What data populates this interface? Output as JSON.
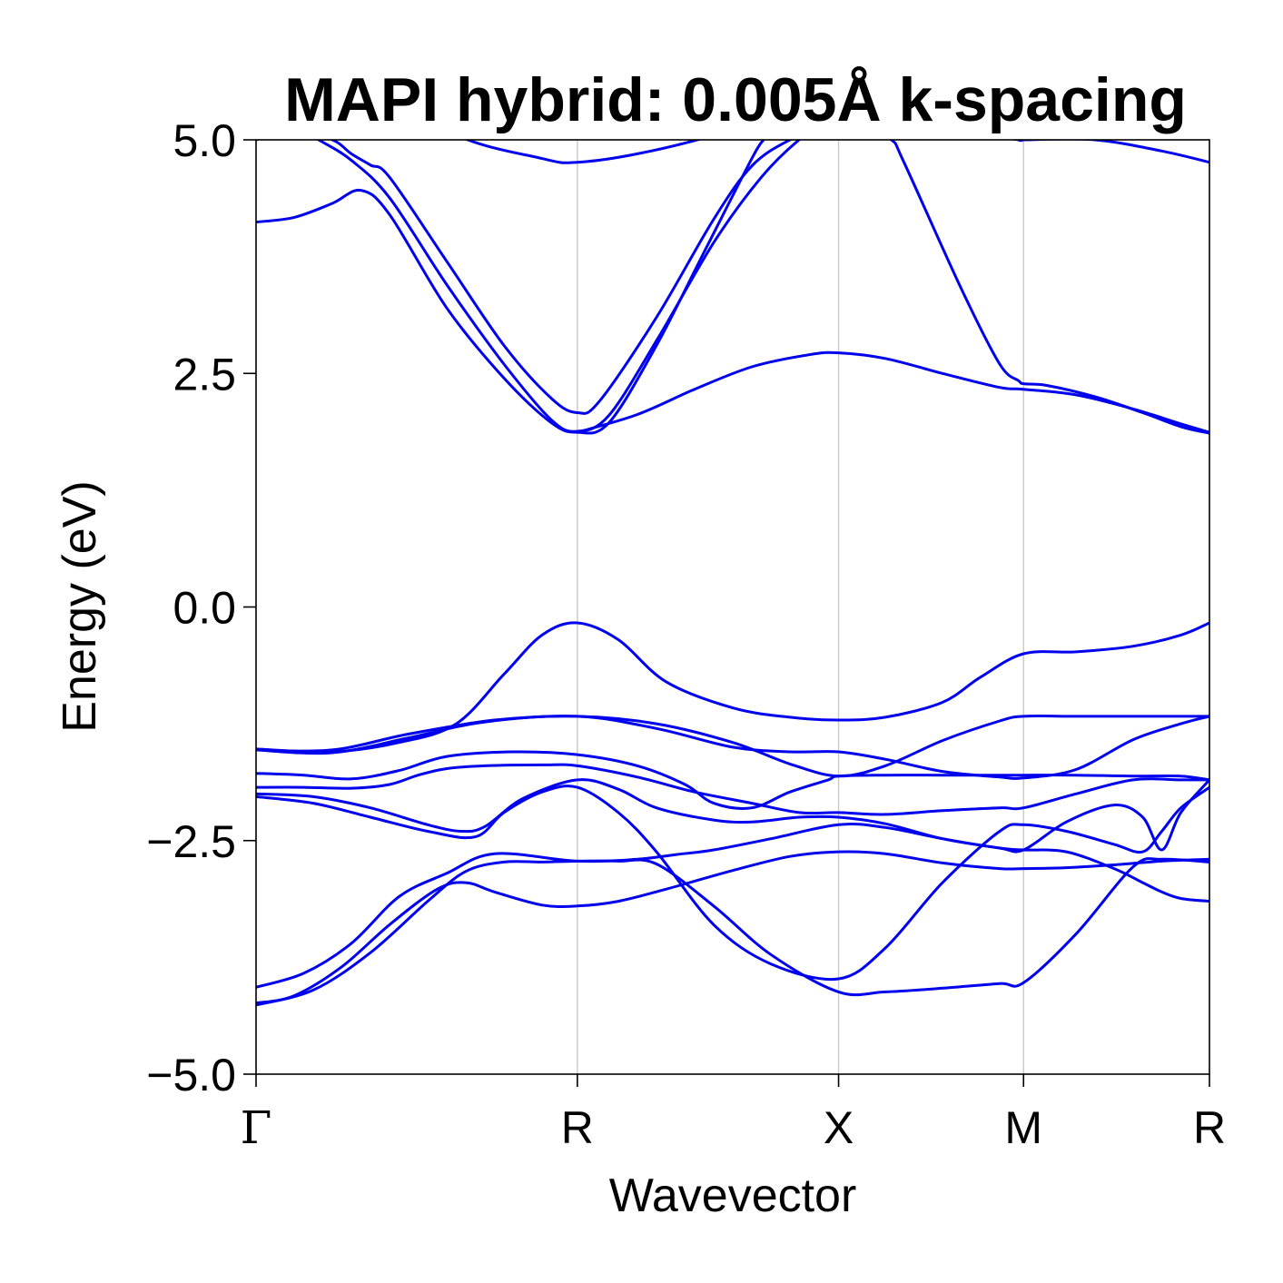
{
  "chart_data": {
    "type": "line",
    "title": "MAPI hybrid: 0.005Å k-spacing",
    "xlabel": "Wavevector",
    "ylabel": "Energy (eV)",
    "ylim": [
      -5.0,
      5.0
    ],
    "xlim": [
      0,
      1
    ],
    "yticks": [
      5.0,
      2.5,
      0.0,
      -2.5,
      -5.0
    ],
    "ytick_labels": [
      "5.0",
      "2.5",
      "0.0",
      "−2.5",
      "−5.0"
    ],
    "kpoints": [
      {
        "label": "Γ",
        "x": 0.0
      },
      {
        "label": "R",
        "x": 0.337
      },
      {
        "label": "X",
        "x": 0.611
      },
      {
        "label": "M",
        "x": 0.805
      },
      {
        "label": "R",
        "x": 1.0
      }
    ],
    "grid": "vertical lines at k-points",
    "color": "#0000ee",
    "series": [
      {
        "x": [
          0.0,
          0.04,
          0.08,
          0.11,
          0.14,
          0.2,
          0.26,
          0.31,
          0.337,
          0.37,
          0.42,
          0.47,
          0.52,
          0.5323
        ],
        "y": [
          4.12,
          4.17,
          4.32,
          4.46,
          4.2,
          3.2,
          2.45,
          1.97,
          1.87,
          1.97,
          2.8,
          3.8,
          4.8,
          5.0
        ]
      },
      {
        "x": [
          0.0,
          0.04,
          0.08,
          0.1,
          0.12,
          0.14,
          0.2,
          0.26,
          0.31,
          0.337,
          0.36,
          0.42,
          0.48,
          0.52,
          0.56,
          0.6,
          0.611,
          0.64,
          0.6664,
          0.68,
          0.74,
          0.78,
          0.8,
          0.805,
          0.83,
          0.88,
          0.93,
          0.97,
          1.0
        ],
        "y": [
          5.0,
          5.1,
          5.0,
          4.85,
          4.73,
          4.6,
          3.7,
          2.8,
          2.23,
          2.08,
          2.2,
          3.1,
          4.15,
          4.72,
          5.0,
          5.15,
          5.15,
          5.1,
          5.0,
          4.75,
          3.4,
          2.6,
          2.42,
          2.39,
          2.37,
          2.25,
          2.08,
          1.93,
          1.86
        ]
      },
      {
        "x": [
          0.0,
          0.03,
          0.0657,
          0.1,
          0.14,
          0.2,
          0.26,
          0.31,
          0.337,
          0.37,
          0.42,
          0.48,
          0.53,
          0.5695,
          0.6,
          0.611
        ],
        "y": [
          5.05,
          5.2,
          5.0,
          4.78,
          4.38,
          3.45,
          2.6,
          2.0,
          1.88,
          2.05,
          2.85,
          3.9,
          4.6,
          5.0,
          5.2,
          5.25
        ]
      },
      {
        "x": [
          0.0,
          0.1,
          0.2,
          0.3,
          0.337,
          0.4,
          0.48,
          0.55,
          0.611,
          0.67,
          0.74,
          0.8,
          0.805,
          0.88,
          0.95,
          1.0
        ],
        "y": [
          5.0,
          5.9,
          5.1,
          4.8,
          4.76,
          4.85,
          5.05,
          5.3,
          5.4,
          5.3,
          5.1,
          5.0,
          5.0,
          5.0,
          4.88,
          4.76
        ]
      },
      {
        "x": [
          0.337,
          0.4,
          0.46,
          0.52,
          0.58,
          0.611,
          0.66,
          0.72,
          0.78,
          0.805,
          0.86,
          0.92,
          0.97,
          1.0
        ],
        "y": [
          1.87,
          2.06,
          2.33,
          2.57,
          2.7,
          2.72,
          2.66,
          2.5,
          2.35,
          2.33,
          2.27,
          2.12,
          1.96,
          1.87
        ]
      },
      {
        "x": [
          0.0,
          0.08,
          0.15,
          0.21,
          0.26,
          0.3,
          0.337,
          0.38,
          0.43,
          0.5,
          0.56,
          0.611,
          0.66,
          0.72,
          0.76,
          0.805,
          0.86,
          0.92,
          0.97,
          1.0
        ],
        "y": [
          -1.52,
          -1.55,
          -1.45,
          -1.25,
          -0.72,
          -0.3,
          -0.17,
          -0.35,
          -0.8,
          -1.08,
          -1.18,
          -1.21,
          -1.18,
          -1.02,
          -0.75,
          -0.5,
          -0.48,
          -0.42,
          -0.3,
          -0.17
        ]
      },
      {
        "x": [
          0.0,
          0.08,
          0.16,
          0.24,
          0.337,
          0.42,
          0.5,
          0.56,
          0.611,
          0.66,
          0.72,
          0.78,
          0.805,
          0.86,
          0.92,
          0.97,
          1.0
        ],
        "y": [
          -1.53,
          -1.56,
          -1.4,
          -1.23,
          -1.17,
          -1.3,
          -1.5,
          -1.55,
          -1.55,
          -1.63,
          -1.76,
          -1.82,
          -1.83,
          -1.74,
          -1.42,
          -1.25,
          -1.17
        ]
      },
      {
        "x": [
          0.0,
          0.08,
          0.16,
          0.25,
          0.337,
          0.42,
          0.5,
          0.56,
          0.611,
          0.66,
          0.72,
          0.78,
          0.805,
          0.86,
          0.92,
          0.97,
          1.0
        ],
        "y": [
          -1.53,
          -1.53,
          -1.36,
          -1.21,
          -1.17,
          -1.25,
          -1.45,
          -1.68,
          -1.81,
          -1.7,
          -1.43,
          -1.22,
          -1.17,
          -1.17,
          -1.17,
          -1.17,
          -1.17
        ]
      },
      {
        "x": [
          0.0,
          0.05,
          0.1,
          0.15,
          0.2,
          0.27,
          0.337,
          0.4,
          0.45,
          0.48,
          0.52,
          0.56,
          0.6,
          0.611,
          0.66,
          0.72,
          0.78,
          0.805,
          0.86,
          0.92,
          0.97,
          1.0
        ],
        "y": [
          -1.78,
          -1.8,
          -1.84,
          -1.75,
          -1.6,
          -1.55,
          -1.58,
          -1.7,
          -1.9,
          -2.1,
          -2.15,
          -1.98,
          -1.85,
          -1.81,
          -1.8,
          -1.8,
          -1.8,
          -1.8,
          -1.8,
          -1.81,
          -1.81,
          -1.85
        ]
      },
      {
        "x": [
          0.0,
          0.05,
          0.1,
          0.14,
          0.17,
          0.2,
          0.24,
          0.3,
          0.337,
          0.4,
          0.46,
          0.52,
          0.57,
          0.611,
          0.66,
          0.72,
          0.78,
          0.805,
          0.86,
          0.92,
          0.97,
          1.0
        ],
        "y": [
          -1.93,
          -1.93,
          -1.94,
          -1.9,
          -1.8,
          -1.73,
          -1.7,
          -1.69,
          -1.7,
          -1.82,
          -1.98,
          -2.1,
          -2.2,
          -2.2,
          -2.22,
          -2.18,
          -2.15,
          -2.15,
          -2.0,
          -1.85,
          -1.85,
          -1.85
        ]
      },
      {
        "x": [
          0.0,
          0.06,
          0.12,
          0.18,
          0.215,
          0.24,
          0.28,
          0.337,
          0.38,
          0.42,
          0.48,
          0.52,
          0.57,
          0.611,
          0.66,
          0.72,
          0.78,
          0.805,
          0.85,
          0.9,
          0.93,
          0.95,
          0.97,
          1.0
        ],
        "y": [
          -2.0,
          -2.03,
          -2.15,
          -2.33,
          -2.4,
          -2.35,
          -2.05,
          -1.85,
          -1.95,
          -2.15,
          -2.28,
          -2.3,
          -2.25,
          -2.25,
          -2.32,
          -2.48,
          -2.58,
          -2.6,
          -2.3,
          -2.12,
          -2.25,
          -2.6,
          -2.2,
          -1.85
        ]
      },
      {
        "x": [
          0.0,
          0.06,
          0.12,
          0.18,
          0.23,
          0.26,
          0.3,
          0.337,
          0.38,
          0.42,
          0.48,
          0.54,
          0.611,
          0.66,
          0.72,
          0.78,
          0.805,
          0.85,
          0.9,
          0.93,
          0.95,
          0.97,
          1.0
        ],
        "y": [
          -2.03,
          -2.1,
          -2.25,
          -2.4,
          -2.46,
          -2.2,
          -1.98,
          -1.93,
          -2.2,
          -2.62,
          -3.4,
          -3.82,
          -3.98,
          -3.65,
          -2.95,
          -2.4,
          -2.33,
          -2.4,
          -2.54,
          -2.62,
          -2.4,
          -2.15,
          -1.93
        ]
      },
      {
        "x": [
          0.0,
          0.05,
          0.1,
          0.15,
          0.2,
          0.25,
          0.337,
          0.4,
          0.44,
          0.48,
          0.54,
          0.611,
          0.66,
          0.72,
          0.78,
          0.805,
          0.85,
          0.9,
          0.93,
          0.95,
          0.97,
          1.0
        ],
        "y": [
          -4.07,
          -3.92,
          -3.6,
          -3.1,
          -2.85,
          -2.64,
          -2.72,
          -2.7,
          -2.65,
          -2.6,
          -2.48,
          -2.33,
          -2.36,
          -2.48,
          -2.58,
          -2.6,
          -2.62,
          -2.8,
          -2.95,
          -3.05,
          -3.12,
          -3.15
        ]
      },
      {
        "x": [
          0.0,
          0.06,
          0.12,
          0.18,
          0.22,
          0.26,
          0.3,
          0.337,
          0.38,
          0.42,
          0.48,
          0.54,
          0.611,
          0.66,
          0.72,
          0.78,
          0.805,
          0.86,
          0.92,
          0.95,
          1.0
        ],
        "y": [
          -4.26,
          -4.1,
          -3.7,
          -3.15,
          -2.83,
          -2.73,
          -2.73,
          -2.72,
          -2.72,
          -2.75,
          -3.2,
          -3.72,
          -4.12,
          -4.12,
          -4.08,
          -4.03,
          -4.02,
          -3.5,
          -2.78,
          -2.7,
          -2.73
        ]
      },
      {
        "x": [
          0.0,
          0.04,
          0.09,
          0.14,
          0.19,
          0.22,
          0.25,
          0.3,
          0.337,
          0.38,
          0.43,
          0.5,
          0.56,
          0.611,
          0.66,
          0.72,
          0.78,
          0.805,
          0.85,
          0.9,
          0.95,
          1.0
        ],
        "y": [
          -4.24,
          -4.16,
          -3.85,
          -3.4,
          -3.02,
          -2.95,
          -3.05,
          -3.19,
          -3.2,
          -3.15,
          -3.02,
          -2.82,
          -2.67,
          -2.62,
          -2.64,
          -2.74,
          -2.8,
          -2.8,
          -2.79,
          -2.76,
          -2.72,
          -2.7
        ]
      }
    ]
  }
}
